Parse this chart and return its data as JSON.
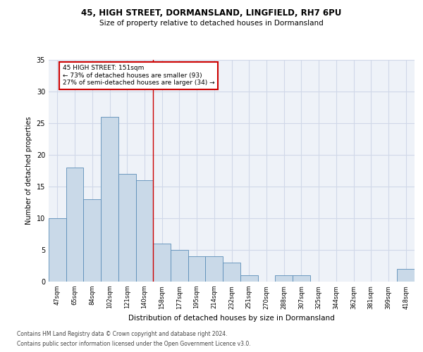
{
  "title1": "45, HIGH STREET, DORMANSLAND, LINGFIELD, RH7 6PU",
  "title2": "Size of property relative to detached houses in Dormansland",
  "xlabel": "Distribution of detached houses by size in Dormansland",
  "ylabel": "Number of detached properties",
  "categories": [
    "47sqm",
    "65sqm",
    "84sqm",
    "102sqm",
    "121sqm",
    "140sqm",
    "158sqm",
    "177sqm",
    "195sqm",
    "214sqm",
    "232sqm",
    "251sqm",
    "270sqm",
    "288sqm",
    "307sqm",
    "325sqm",
    "344sqm",
    "362sqm",
    "381sqm",
    "399sqm",
    "418sqm"
  ],
  "values": [
    10,
    18,
    13,
    26,
    17,
    16,
    6,
    5,
    4,
    4,
    3,
    1,
    0,
    1,
    1,
    0,
    0,
    0,
    0,
    0,
    2
  ],
  "bar_color": "#c9d9e8",
  "bar_edge_color": "#5b8db8",
  "grid_color": "#d0d8e8",
  "background_color": "#eef2f8",
  "annotation_text": "45 HIGH STREET: 151sqm\n← 73% of detached houses are smaller (93)\n27% of semi-detached houses are larger (34) →",
  "annotation_box_color": "#ffffff",
  "annotation_box_edge": "#cc0000",
  "vline_x": 5.5,
  "vline_color": "#cc0000",
  "ylim": [
    0,
    35
  ],
  "yticks": [
    0,
    5,
    10,
    15,
    20,
    25,
    30,
    35
  ],
  "footer1": "Contains HM Land Registry data © Crown copyright and database right 2024.",
  "footer2": "Contains public sector information licensed under the Open Government Licence v3.0."
}
